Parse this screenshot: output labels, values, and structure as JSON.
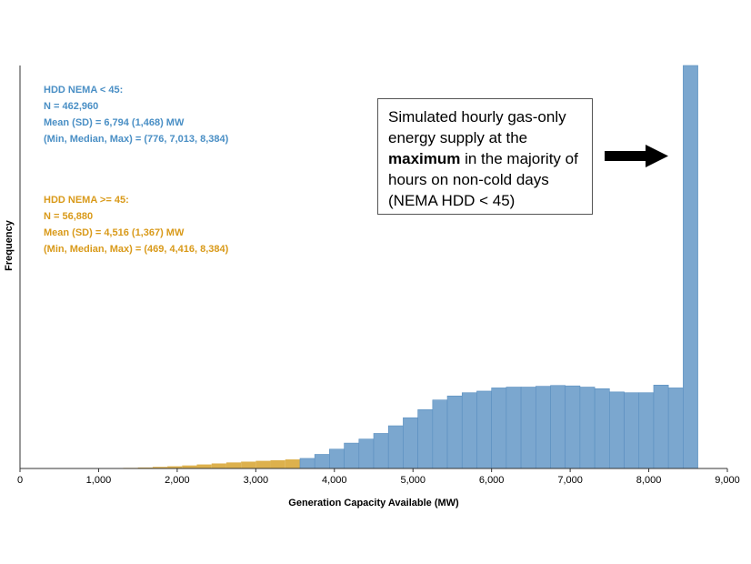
{
  "chart_data": {
    "type": "bar",
    "title": "",
    "xlabel": "Generation Capacity Available (MW)",
    "ylabel": "Frequency",
    "xlim": [
      0,
      9000
    ],
    "ylim": [
      0,
      100
    ],
    "bin_width": 187.5,
    "xticks": [
      0,
      1000,
      2000,
      3000,
      4000,
      5000,
      6000,
      7000,
      8000,
      9000
    ],
    "xtick_labels": [
      "0",
      "1,000",
      "2,000",
      "3,000",
      "4,000",
      "5,000",
      "6,000",
      "7,000",
      "8,000",
      "9,000"
    ],
    "series": [
      {
        "name": "HDD NEMA < 45",
        "color": "#7ba7cf",
        "edge_color": "#5a8fc0",
        "bin_starts": [
          3562.5,
          3750,
          3937.5,
          4125,
          4312.5,
          4500,
          4687.5,
          4875,
          5062.5,
          5250,
          5437.5,
          5625,
          5812.5,
          6000,
          6187.5,
          6375,
          6562.5,
          6750,
          6937.5,
          7125,
          7312.5,
          7500,
          7687.5,
          7875,
          8062.5,
          8250,
          8437.5
        ],
        "values": [
          2.5,
          3.5,
          4.8,
          6.3,
          7.3,
          8.7,
          10.6,
          12.6,
          14.6,
          17.0,
          18.0,
          18.8,
          19.2,
          20.0,
          20.2,
          20.2,
          20.4,
          20.6,
          20.5,
          20.2,
          19.8,
          19.0,
          18.8,
          18.8,
          20.7,
          20.0,
          100.0
        ]
      },
      {
        "name": "HDD NEMA >= 45",
        "color": "#d9a83a",
        "edge_color": "#c79a2a",
        "bin_starts": [
          1125,
          1312.5,
          1500,
          1687.5,
          1875,
          2062.5,
          2250,
          2437.5,
          2625,
          2812.5,
          3000,
          3187.5,
          3375,
          3562.5,
          3750,
          3937.5,
          4125,
          4312.5,
          4500,
          4687.5,
          4875,
          5062.5,
          5250,
          5437.5,
          5625,
          5812.5,
          6000,
          6187.5,
          6375,
          6562.5,
          6750,
          6937.5,
          7125,
          7312.5,
          7500
        ],
        "values": [
          0.1,
          0.15,
          0.25,
          0.4,
          0.55,
          0.75,
          1.0,
          1.25,
          1.5,
          1.7,
          1.9,
          2.05,
          2.25,
          2.4,
          2.45,
          2.45,
          2.45,
          2.4,
          2.3,
          2.15,
          2.0,
          1.85,
          1.65,
          1.5,
          1.3,
          1.1,
          0.95,
          0.8,
          0.65,
          0.5,
          0.4,
          0.3,
          0.2,
          0.12,
          0.06
        ]
      }
    ]
  },
  "stats": {
    "blue": {
      "header": "HDD NEMA < 45:",
      "n": "N = 462,960",
      "mean": "Mean (SD) = 6,794 (1,468) MW",
      "range": "(Min, Median, Max) = (776, 7,013, 8,384)"
    },
    "orange": {
      "header": "HDD NEMA >= 45:",
      "n": "N = 56,880",
      "mean": "Mean (SD) = 4,516 (1,367) MW",
      "range": "(Min, Median, Max) = (469, 4,416, 8,384)"
    }
  },
  "callout": {
    "text_before": "Simulated hourly gas-only energy supply at the ",
    "text_bold": "maximum",
    "text_after": " in the majority of hours on non-cold days (NEMA HDD < 45)"
  },
  "colors": {
    "blue_text": "#4a8fc5",
    "orange_text": "#d99a1a",
    "axis": "#333333",
    "arrow": "#000000"
  }
}
